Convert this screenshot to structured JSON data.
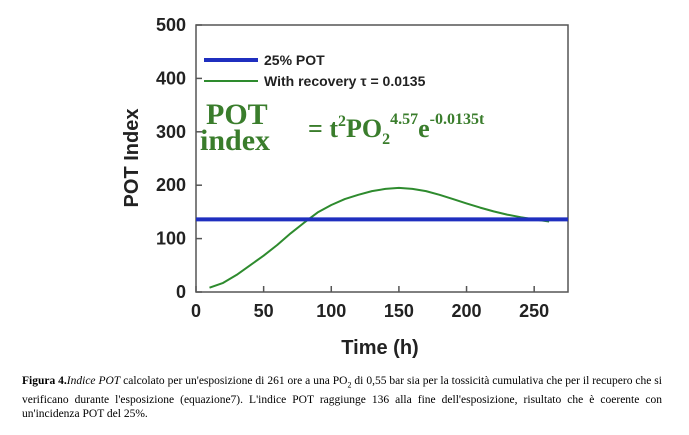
{
  "chart_data": {
    "type": "line",
    "xlabel": "Time (h)",
    "ylabel": "POT Index",
    "xlim": [
      0,
      275
    ],
    "ylim": [
      0,
      500
    ],
    "x_ticks": [
      "0",
      "50",
      "100",
      "150",
      "200",
      "250"
    ],
    "y_ticks": [
      "0",
      "100",
      "200",
      "300",
      "400",
      "500"
    ],
    "grid": false,
    "legend_position": "top-left",
    "series": [
      {
        "name": "25% POT",
        "color": "#1f2fbf",
        "x": [
          0,
          275
        ],
        "y": [
          136,
          136
        ]
      },
      {
        "name": "With recovery τ = 0.0135",
        "color": "#2e8b2e",
        "x": [
          10,
          20,
          30,
          40,
          50,
          60,
          70,
          80,
          90,
          100,
          110,
          120,
          130,
          140,
          150,
          160,
          170,
          180,
          190,
          200,
          210,
          220,
          230,
          240,
          250,
          261
        ],
        "y": [
          8,
          17,
          32,
          50,
          68,
          88,
          110,
          130,
          149,
          163,
          174,
          182,
          189,
          193,
          195,
          193,
          189,
          182,
          174,
          166,
          158,
          151,
          145,
          140,
          136,
          132
        ]
      }
    ],
    "annotation": {
      "lhs_line1": "POT",
      "lhs_line2": "index",
      "eq": "= t",
      "sup1": "2",
      "base": "PO",
      "sub": "2",
      "sup2": "4.57",
      "e": "e",
      "sup3": "-0.0135t"
    }
  },
  "caption": {
    "label": "Figura 4.",
    "term": "Indice POT",
    "text1": " calcolato per un'esposizione di 261 ore a una PO",
    "sub": "2",
    "text2": " di 0,55 bar sia per la tossicità cumulativa che per il recupero che si verificano durante l'esposizione (equazione7). L'indice POT raggiunge 136 alla fine dell'esposizione, risultato che è coerente con un'incidenza POT del 25%."
  }
}
